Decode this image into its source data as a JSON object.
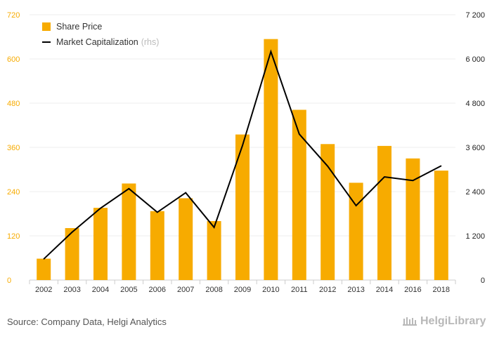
{
  "chart_data": {
    "type": "bar",
    "categories": [
      "2002",
      "2003",
      "2004",
      "2005",
      "2006",
      "2007",
      "2008",
      "2009",
      "2010",
      "2011",
      "2012",
      "2013",
      "2014",
      "2016",
      "2018"
    ],
    "series": [
      {
        "name": "Share Price",
        "type": "bar",
        "axis": "left",
        "color": "#f7ab00",
        "values": [
          58,
          141,
          196,
          262,
          187,
          222,
          160,
          395,
          654,
          462,
          369,
          264,
          364,
          330,
          297
        ]
      },
      {
        "name": "Market Capitalization",
        "type": "line",
        "axis": "right",
        "color": "#000000",
        "values": [
          570,
          1300,
          1950,
          2480,
          1840,
          2370,
          1430,
          3650,
          6200,
          3960,
          3090,
          2020,
          2800,
          2700,
          3100
        ]
      }
    ],
    "y_left": {
      "ylim": [
        0,
        720
      ],
      "ticks": [
        "0",
        "120",
        "240",
        "360",
        "480",
        "600",
        "720"
      ],
      "tick_values": [
        0,
        120,
        240,
        360,
        480,
        600,
        720
      ]
    },
    "y_right": {
      "ylim": [
        0,
        7200
      ],
      "ticks": [
        "0",
        "1 200",
        "2 400",
        "3 600",
        "4 800",
        "6 000",
        "7 200"
      ],
      "tick_values": [
        0,
        1200,
        2400,
        3600,
        4800,
        6000,
        7200
      ]
    },
    "legend": {
      "placement": "top-left",
      "items": [
        {
          "label": "Share Price",
          "note": ""
        },
        {
          "label": "Market Capitalization",
          "note": "(rhs)"
        }
      ]
    },
    "grid": true,
    "left_tick_color": "#f7ab00",
    "right_tick_color": "#222222"
  },
  "footer": {
    "source": "Source: Company Data, Helgi Analytics",
    "brand": "HelgiLibrary"
  }
}
